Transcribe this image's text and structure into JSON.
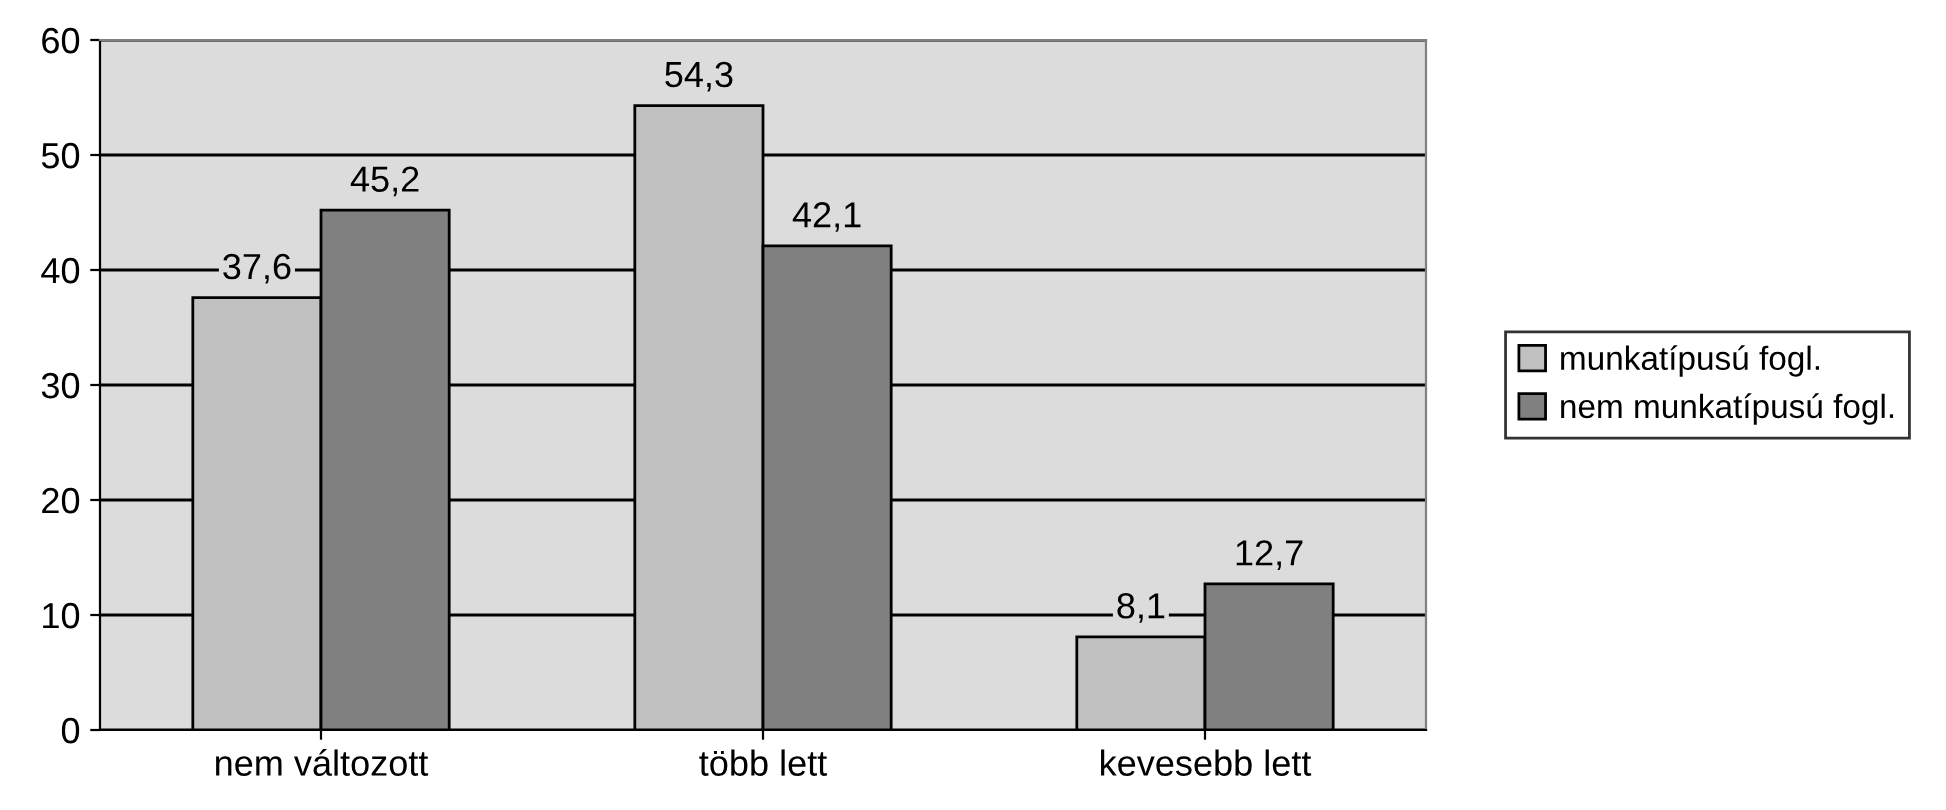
{
  "chart_data": {
    "type": "bar",
    "categories": [
      "nem változott",
      "több lett",
      "kevesebb lett"
    ],
    "series": [
      {
        "name": "munkatípusú fogl.",
        "color": "#c0c0c0",
        "values": [
          37.6,
          54.3,
          8.1
        ],
        "value_labels": [
          "37,6",
          "54,3",
          "8,1"
        ]
      },
      {
        "name": "nem munkatípusú fogl.",
        "color": "#808080",
        "values": [
          45.2,
          42.1,
          12.7
        ],
        "value_labels": [
          "45,2",
          "42,1",
          "12,7"
        ]
      }
    ],
    "ylim": [
      0,
      60
    ],
    "yticks": [
      0,
      10,
      20,
      30,
      40,
      50,
      60
    ],
    "grid": "y",
    "legend": "right"
  }
}
